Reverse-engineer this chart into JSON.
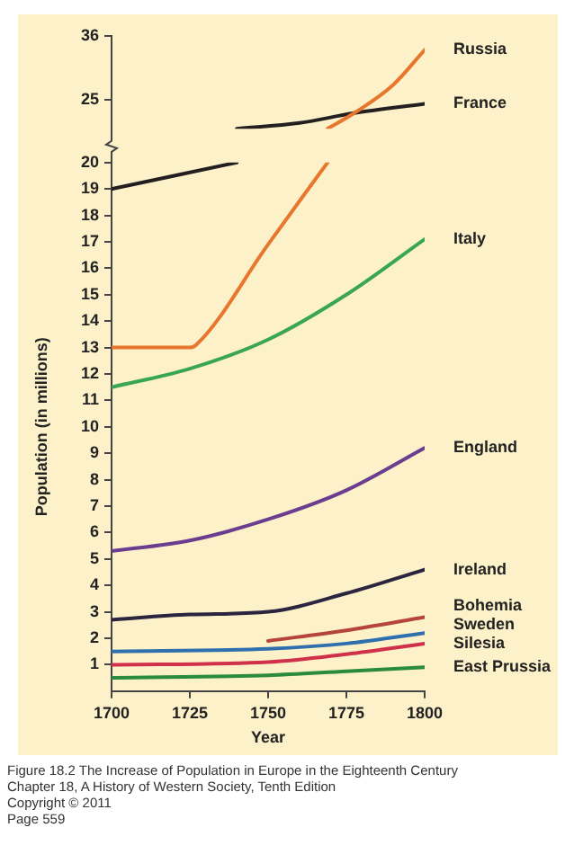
{
  "chart_data": [
    {
      "type": "line",
      "xlim": [
        1700,
        1800
      ],
      "ylim": [
        20,
        36
      ],
      "yticks": [
        25,
        36
      ],
      "tick_labels": "y",
      "legend": false,
      "series": [
        {
          "name": "Russia",
          "color": "#e8772e",
          "x": [
            1769,
            1777.5,
            1790,
            1800
          ],
          "values": [
            20,
            22.7,
            27.6,
            33.6
          ]
        },
        {
          "name": "France",
          "color": "#231f20",
          "x": [
            1740,
            1760,
            1777.5,
            1800
          ],
          "values": [
            20,
            21,
            22.7,
            24.3
          ]
        }
      ]
    },
    {
      "type": "line",
      "xlabel": "Year",
      "ylabel": "Population (in millions)",
      "xlim": [
        1700,
        1800
      ],
      "xticks": [
        1700,
        1725,
        1750,
        1775,
        1800
      ],
      "ylim": [
        0,
        20
      ],
      "yticks": [
        1,
        2,
        3,
        4,
        5,
        6,
        7,
        8,
        9,
        10,
        11,
        12,
        13,
        14,
        15,
        16,
        17,
        18,
        19,
        20
      ],
      "legend": false,
      "series": [
        {
          "color": "#e8772e",
          "x": [
            1700,
            1725,
            1727,
            1750,
            1761,
            1769
          ],
          "values": [
            13,
            13,
            13.1,
            16.9,
            18.7,
            20
          ]
        },
        {
          "color": "#231f20",
          "x": [
            1700,
            1720,
            1740
          ],
          "values": [
            19,
            19.5,
            20
          ]
        },
        {
          "name": "Italy",
          "color": "#3aa655",
          "x": [
            1700,
            1725,
            1750,
            1775,
            1800
          ],
          "values": [
            11.5,
            12.2,
            13.3,
            15,
            17.1
          ]
        },
        {
          "name": "England",
          "color": "#6a3d8f",
          "x": [
            1700,
            1725,
            1750,
            1775,
            1800
          ],
          "values": [
            5.3,
            5.7,
            6.5,
            7.6,
            9.2
          ]
        },
        {
          "name": "Ireland",
          "color": "#2b2540",
          "x": [
            1700,
            1725,
            1750,
            1775,
            1800
          ],
          "values": [
            2.7,
            2.9,
            3,
            3.7,
            4.6
          ]
        },
        {
          "name": "Bohemia",
          "color": "#b5453a",
          "x": [
            1750,
            1775,
            1800
          ],
          "values": [
            1.9,
            2.3,
            2.8
          ]
        },
        {
          "name": "Sweden",
          "color": "#2f6fae",
          "x": [
            1700,
            1750,
            1775,
            1800
          ],
          "values": [
            1.5,
            1.6,
            1.8,
            2.2
          ]
        },
        {
          "name": "Silesia",
          "color": "#d0314a",
          "x": [
            1700,
            1750,
            1775,
            1800
          ],
          "values": [
            1,
            1.1,
            1.4,
            1.8
          ]
        },
        {
          "name": "East Prussia",
          "color": "#2a8a3e",
          "x": [
            1700,
            1750,
            1775,
            1800
          ],
          "values": [
            0.5,
            0.6,
            0.75,
            0.9
          ]
        }
      ],
      "annotations": [
        "Figure 18.2 The Increase of Population in Europe in the Eighteenth Century",
        "Chapter 18, A History of Western Society, Tenth Edition",
        "Copyright © 2011",
        "Page 559"
      ]
    }
  ]
}
